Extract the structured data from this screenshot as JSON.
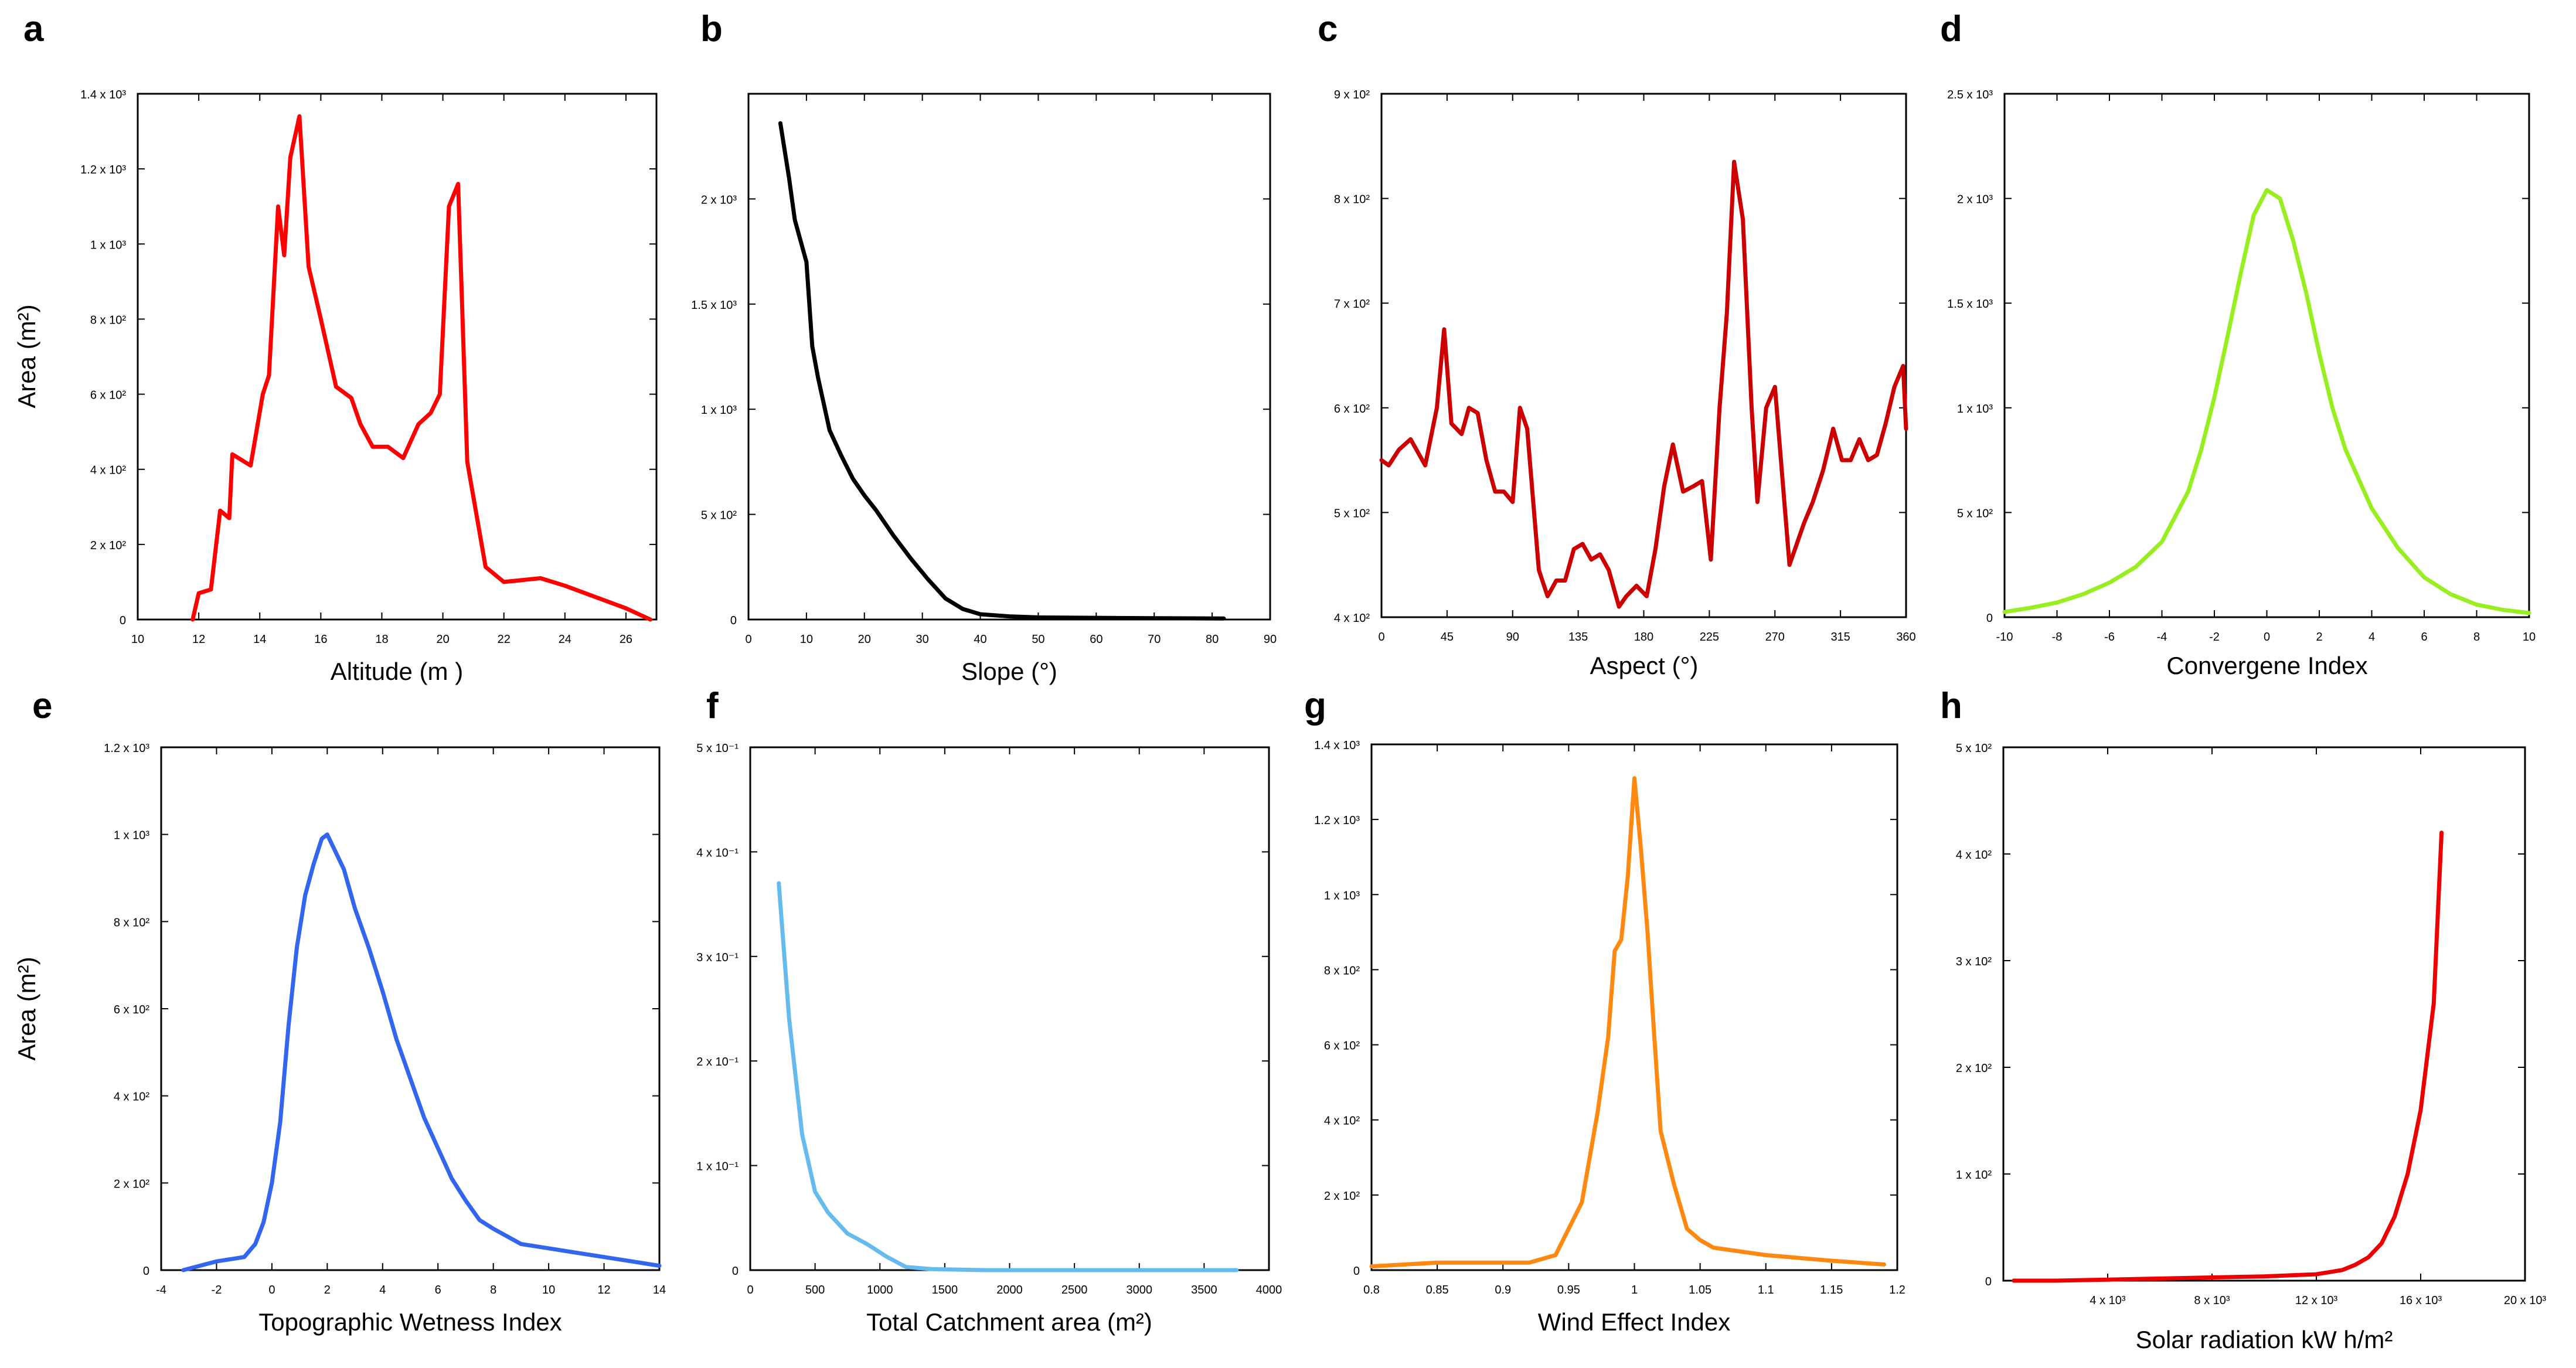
{
  "chart_data": [
    {
      "id": "a",
      "type": "line",
      "panel_label": "a",
      "xlabel": "Altitude (m )",
      "ylabel": "Area (m²)",
      "color": "#ff0000",
      "xlim": [
        10,
        27
      ],
      "ylim": [
        0,
        1400
      ],
      "xticks": [
        10,
        12,
        14,
        16,
        18,
        20,
        22,
        24,
        26
      ],
      "xtick_labels": [
        "10",
        "12",
        "14",
        "16",
        "18",
        "20",
        "22",
        "24",
        "26"
      ],
      "yticks": [
        0,
        200,
        400,
        600,
        800,
        1000,
        1200,
        1400
      ],
      "ytick_labels": [
        "0",
        "2 x 10²",
        "4 x 10²",
        "6 x 10²",
        "8 x 10²",
        "1 x 10³",
        "1.2 x 10³",
        "1.4 x 10³"
      ],
      "x": [
        11.8,
        12.0,
        12.4,
        12.7,
        13.0,
        13.1,
        13.3,
        13.7,
        14.1,
        14.3,
        14.6,
        14.8,
        15.0,
        15.3,
        15.6,
        16.0,
        16.5,
        17.0,
        17.3,
        17.7,
        18.2,
        18.7,
        19.2,
        19.6,
        19.9,
        20.2,
        20.5,
        20.8,
        21.4,
        22.0,
        23.2,
        24.0,
        25.0,
        26.0,
        26.8
      ],
      "y": [
        0,
        70,
        80,
        290,
        270,
        440,
        430,
        410,
        600,
        650,
        1100,
        970,
        1230,
        1340,
        940,
        800,
        620,
        590,
        520,
        460,
        460,
        430,
        520,
        550,
        600,
        1100,
        1160,
        420,
        140,
        100,
        110,
        90,
        60,
        30,
        0
      ]
    },
    {
      "id": "b",
      "type": "line",
      "panel_label": "b",
      "xlabel": "Slope (°)",
      "ylabel": "",
      "color": "#000000",
      "xlim": [
        0,
        90
      ],
      "ylim": [
        0,
        2500
      ],
      "xticks": [
        0,
        10,
        20,
        30,
        40,
        50,
        60,
        70,
        80,
        90
      ],
      "xtick_labels": [
        "0",
        "10",
        "20",
        "30",
        "40",
        "50",
        "60",
        "70",
        "80",
        "90"
      ],
      "yticks": [
        0,
        500,
        1000,
        1500,
        2000
      ],
      "ytick_labels": [
        "0",
        "5 x 10²",
        "1 x 10³",
        "1.5 x 10³",
        "2 x 10³"
      ],
      "x": [
        5.5,
        7,
        8,
        10,
        11,
        12,
        14,
        16,
        18,
        20,
        22,
        25,
        28,
        31,
        34,
        37,
        40,
        45,
        50,
        60,
        70,
        82
      ],
      "y": [
        2360,
        2100,
        1900,
        1700,
        1300,
        1150,
        900,
        780,
        670,
        590,
        520,
        400,
        290,
        190,
        100,
        50,
        25,
        15,
        10,
        8,
        6,
        5
      ]
    },
    {
      "id": "c",
      "type": "line",
      "panel_label": "c",
      "xlabel": "Aspect (°)",
      "ylabel": "",
      "color": "#cc0000",
      "xlim": [
        0,
        360
      ],
      "ylim": [
        400,
        900
      ],
      "xticks": [
        0,
        45,
        90,
        135,
        180,
        225,
        270,
        315,
        360
      ],
      "xtick_labels": [
        "0",
        "45",
        "90",
        "135",
        "180",
        "225",
        "270",
        "315",
        "360"
      ],
      "yticks": [
        400,
        500,
        600,
        700,
        800,
        900
      ],
      "ytick_labels": [
        "4 x 10²",
        "5 x 10²",
        "6 x 10²",
        "7 x 10²",
        "8 x 10²",
        "9 x 10²"
      ],
      "x": [
        0,
        5,
        12,
        20,
        30,
        38,
        43,
        48,
        55,
        60,
        66,
        72,
        78,
        84,
        90,
        95,
        100,
        108,
        114,
        120,
        126,
        132,
        138,
        144,
        150,
        156,
        163,
        168,
        175,
        182,
        188,
        194,
        200,
        207,
        214,
        220,
        226,
        232,
        237,
        242,
        248,
        254,
        258,
        264,
        270,
        280,
        290,
        296,
        303,
        310,
        316,
        322,
        328,
        334,
        340,
        346,
        352,
        358,
        360
      ],
      "y": [
        550,
        545,
        560,
        570,
        545,
        600,
        675,
        585,
        575,
        600,
        595,
        550,
        520,
        520,
        510,
        600,
        580,
        445,
        420,
        435,
        435,
        465,
        470,
        455,
        460,
        445,
        410,
        420,
        430,
        420,
        465,
        525,
        565,
        520,
        525,
        530,
        455,
        600,
        690,
        835,
        780,
        600,
        510,
        600,
        620,
        450,
        490,
        510,
        540,
        580,
        550,
        550,
        570,
        550,
        555,
        585,
        620,
        640,
        580
      ]
    },
    {
      "id": "d",
      "type": "line",
      "panel_label": "d",
      "xlabel": "Convergene Index",
      "ylabel": "",
      "color": "#99ee22",
      "xlim": [
        -10,
        10
      ],
      "ylim": [
        0,
        2500
      ],
      "xticks": [
        -10,
        -8,
        -6,
        -4,
        -2,
        0,
        2,
        4,
        6,
        8,
        10
      ],
      "xtick_labels": [
        "-10",
        "-8",
        "-6",
        "-4",
        "-2",
        "0",
        "2",
        "4",
        "6",
        "8",
        "10"
      ],
      "yticks": [
        0,
        500,
        1000,
        1500,
        2000,
        2500
      ],
      "ytick_labels": [
        "0",
        "5 x 10²",
        "1 x 10³",
        "1.5 x 10³",
        "2 x 10³",
        "2.5 x 10³"
      ],
      "x": [
        -10,
        -9,
        -8,
        -7,
        -6,
        -5,
        -4,
        -3,
        -2.5,
        -2,
        -1.5,
        -1,
        -0.5,
        0,
        0.5,
        1,
        1.5,
        2,
        2.5,
        3,
        4,
        5,
        6,
        7,
        8,
        9,
        10
      ],
      "y": [
        25,
        45,
        70,
        110,
        165,
        240,
        360,
        600,
        800,
        1050,
        1340,
        1640,
        1920,
        2040,
        2000,
        1800,
        1550,
        1260,
        1000,
        800,
        520,
        330,
        190,
        110,
        60,
        35,
        20
      ]
    },
    {
      "id": "e",
      "type": "line",
      "panel_label": "e",
      "xlabel": "Topographic Wetness Index",
      "ylabel": "Area (m²)",
      "color": "#3366ee",
      "xlim": [
        -4,
        14
      ],
      "ylim": [
        0,
        1200
      ],
      "xticks": [
        -4,
        -2,
        0,
        2,
        4,
        6,
        8,
        10,
        12,
        14
      ],
      "xtick_labels": [
        "-4",
        "-2",
        "0",
        "2",
        "4",
        "6",
        "8",
        "10",
        "12",
        "14"
      ],
      "yticks": [
        0,
        200,
        400,
        600,
        800,
        1000,
        1200
      ],
      "ytick_labels": [
        "0",
        "2 x 10²",
        "4 x 10²",
        "6 x 10²",
        "8 x 10²",
        "1 x 10³",
        "1.2 x 10³"
      ],
      "x": [
        -3.2,
        -2,
        -1,
        -0.6,
        -0.3,
        0,
        0.3,
        0.6,
        0.9,
        1.2,
        1.5,
        1.8,
        2.0,
        2.3,
        2.6,
        3.0,
        3.5,
        4.0,
        4.5,
        5.0,
        5.5,
        6.0,
        6.5,
        7.0,
        7.5,
        8.0,
        9.0,
        10.0,
        11.0,
        12.0,
        13.0,
        14.0
      ],
      "y": [
        0,
        20,
        30,
        60,
        110,
        200,
        340,
        560,
        740,
        860,
        930,
        990,
        1000,
        960,
        920,
        830,
        740,
        640,
        530,
        440,
        350,
        280,
        210,
        160,
        115,
        95,
        60,
        50,
        40,
        30,
        20,
        10
      ]
    },
    {
      "id": "f",
      "type": "line",
      "panel_label": "f",
      "xlabel": "Total Catchment area (m²)",
      "ylabel": "",
      "color": "#66bbee",
      "xlim": [
        0,
        4000
      ],
      "ylim": [
        0,
        0.5
      ],
      "xticks": [
        0,
        500,
        1000,
        1500,
        2000,
        2500,
        3000,
        3500,
        4000
      ],
      "xtick_labels": [
        "0",
        "500",
        "1000",
        "1500",
        "2000",
        "2500",
        "3000",
        "3500",
        "4000"
      ],
      "yticks": [
        0,
        0.1,
        0.2,
        0.3,
        0.4,
        0.5
      ],
      "ytick_labels": [
        "0",
        "1 x 10⁻¹",
        "2 x 10⁻¹",
        "3 x 10⁻¹",
        "4 x 10⁻¹",
        "5 x 10⁻¹"
      ],
      "x": [
        220,
        300,
        400,
        500,
        600,
        750,
        900,
        1050,
        1200,
        1400,
        1800,
        2500,
        3200,
        3750
      ],
      "y": [
        0.37,
        0.24,
        0.13,
        0.075,
        0.055,
        0.035,
        0.025,
        0.013,
        0.003,
        0.001,
        0,
        0,
        0,
        0
      ]
    },
    {
      "id": "g",
      "type": "line",
      "panel_label": "g",
      "xlabel": "Wind Effect Index",
      "ylabel": "",
      "color": "#ff8811",
      "xlim": [
        0.8,
        1.2
      ],
      "ylim": [
        0,
        1400
      ],
      "xticks": [
        0.8,
        0.85,
        0.9,
        0.95,
        1,
        1.05,
        1.1,
        1.15,
        1.2
      ],
      "xtick_labels": [
        "0.8",
        "0.85",
        "0.9",
        "0.95",
        "1",
        "1.05",
        "1.1",
        "1.15",
        "1.2"
      ],
      "yticks": [
        0,
        200,
        400,
        600,
        800,
        1000,
        1200,
        1400
      ],
      "ytick_labels": [
        "0",
        "2 x 10²",
        "4 x 10²",
        "6 x 10²",
        "8 x 10²",
        "1 x 10³",
        "1.2 x 10³",
        "1.4 x 10³"
      ],
      "x": [
        0.8,
        0.85,
        0.9,
        0.92,
        0.94,
        0.96,
        0.972,
        0.98,
        0.985,
        0.99,
        0.995,
        1.0,
        1.005,
        1.01,
        1.015,
        1.02,
        1.03,
        1.04,
        1.05,
        1.06,
        1.08,
        1.1,
        1.15,
        1.19
      ],
      "y": [
        10,
        20,
        20,
        20,
        40,
        180,
        420,
        620,
        850,
        880,
        1050,
        1310,
        1120,
        900,
        630,
        370,
        230,
        110,
        80,
        60,
        50,
        40,
        25,
        15
      ]
    },
    {
      "id": "h",
      "type": "line",
      "panel_label": "h",
      "xlabel": "Solar radiation kW h/m²",
      "ylabel": "",
      "color": "#ee0000",
      "xlim": [
        0,
        20000
      ],
      "ylim": [
        0,
        500
      ],
      "xticks": [
        4000,
        8000,
        12000,
        16000,
        20000
      ],
      "xtick_labels": [
        "4 x 10³",
        "8 x 10³",
        "12 x 10³",
        "16 x 10³",
        "20 x 10³"
      ],
      "yticks": [
        0,
        100,
        200,
        300,
        400,
        500
      ],
      "ytick_labels": [
        "0",
        "1 x 10²",
        "2 x 10²",
        "3 x 10²",
        "4 x 10²",
        "5 x 10²"
      ],
      "x": [
        400,
        2000,
        4000,
        6000,
        8000,
        10000,
        12000,
        13000,
        13500,
        14000,
        14500,
        15000,
        15500,
        16000,
        16500,
        16800
      ],
      "y": [
        0,
        0,
        1,
        2,
        3,
        4,
        6,
        10,
        15,
        22,
        35,
        60,
        100,
        160,
        260,
        420
      ]
    }
  ]
}
